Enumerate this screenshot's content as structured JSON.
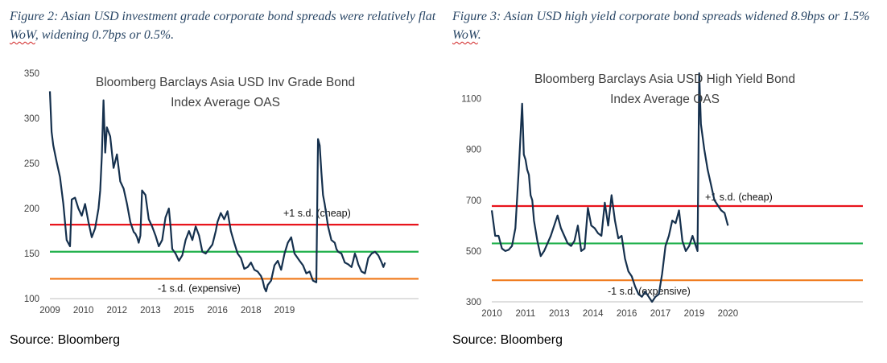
{
  "left": {
    "caption_pre": "Figure 2: Asian USD investment grade corporate bond spreads were relatively flat ",
    "caption_wavy": "WoW",
    "caption_post": ", widening 0.7bps or 0.5%.",
    "source": "Source: Bloomberg"
  },
  "right": {
    "caption_pre": "Figure 3: Asian USD high yield corporate bond spreads widened 8.9bps or 1.5% ",
    "caption_wavy": "WoW",
    "caption_post": ".",
    "source": "Source: Bloomberg"
  },
  "chart_data": [
    {
      "type": "line",
      "title_lines": [
        "Bloomberg Barclays Asia USD Inv Grade Bond",
        "Index Average OAS"
      ],
      "ylim": [
        100,
        350
      ],
      "yticks": [
        100,
        150,
        200,
        250,
        300,
        350
      ],
      "xlim": [
        2009.0,
        2020.0
      ],
      "x_tick_labels": [
        "2009",
        "2010",
        "2012",
        "2013",
        "2015",
        "2016",
        "2018",
        "2019"
      ],
      "x_tick_values": [
        2009.0,
        2010.0,
        2011.0,
        2012.0,
        2013.0,
        2014.0,
        2015.0,
        2016.0
      ],
      "line_color": "#15304d",
      "series": [
        {
          "x": [
            2009.0,
            2009.05,
            2009.1,
            2009.2,
            2009.3,
            2009.4,
            2009.5,
            2009.6,
            2009.65,
            2009.75,
            2009.85,
            2009.95,
            2010.05,
            2010.15,
            2010.25,
            2010.35,
            2010.45,
            2010.5,
            2010.55,
            2010.6,
            2010.65,
            2010.7,
            2010.8,
            2010.9,
            2011.0,
            2011.1,
            2011.2,
            2011.3,
            2011.4,
            2011.5,
            2011.55,
            2011.6,
            2011.65,
            2011.7,
            2011.75,
            2011.85,
            2011.95,
            2012.05,
            2012.15,
            2012.25,
            2012.35,
            2012.45,
            2012.55,
            2012.6,
            2012.65,
            2012.75,
            2012.85,
            2012.95,
            2013.05,
            2013.15,
            2013.25,
            2013.35,
            2013.45,
            2013.55,
            2013.65,
            2013.75,
            2013.85,
            2013.95,
            2014.0,
            2014.1,
            2014.2,
            2014.3,
            2014.4,
            2014.5,
            2014.6,
            2014.7,
            2014.8,
            2014.9,
            2015.0,
            2015.1,
            2015.2,
            2015.3,
            2015.35,
            2015.4,
            2015.45,
            2015.5,
            2015.6,
            2015.7,
            2015.8,
            2015.9,
            2016.0,
            2016.1,
            2016.2,
            2016.3,
            2016.45,
            2016.55,
            2016.65,
            2016.75,
            2016.85,
            2016.95,
            2017.0,
            2017.05,
            2017.1,
            2017.15,
            2017.2,
            2017.3,
            2017.4,
            2017.5,
            2017.55,
            2017.6,
            2017.7,
            2017.8,
            2017.9,
            2018.0,
            2018.05,
            2018.1,
            2018.15,
            2018.2,
            2018.3,
            2018.4,
            2018.5,
            2018.6,
            2018.7,
            2018.8,
            2018.9,
            2018.95,
            2019.0
          ],
          "y": [
            330,
            285,
            270,
            252,
            235,
            205,
            165,
            158,
            210,
            212,
            200,
            192,
            205,
            185,
            168,
            178,
            200,
            220,
            258,
            320,
            262,
            290,
            280,
            245,
            260,
            230,
            222,
            205,
            185,
            174,
            172,
            168,
            162,
            170,
            220,
            215,
            188,
            180,
            170,
            158,
            165,
            190,
            200,
            180,
            155,
            150,
            142,
            148,
            165,
            175,
            165,
            180,
            170,
            152,
            150,
            155,
            160,
            175,
            185,
            195,
            188,
            197,
            175,
            162,
            150,
            145,
            133,
            135,
            140,
            132,
            130,
            125,
            120,
            112,
            108,
            115,
            120,
            137,
            142,
            132,
            150,
            162,
            168,
            150,
            142,
            137,
            128,
            130,
            120,
            118,
            277,
            270,
            240,
            215,
            205,
            180,
            165,
            162,
            155,
            152,
            150,
            140,
            138,
            135,
            142,
            150,
            145,
            138,
            130,
            128,
            145,
            150,
            152,
            148,
            140,
            135,
            140
          ]
        }
      ],
      "reference_lines": [
        {
          "label": "+1 s.d. (cheap)",
          "value": 182,
          "color": "#e8141c"
        },
        {
          "label": "",
          "value": 152,
          "color": "#20b14c"
        },
        {
          "label": "-1 s.d. (expensive)",
          "value": 122,
          "color": "#f07d21"
        }
      ]
    },
    {
      "type": "line",
      "title_lines": [
        "Bloomberg Barclays Asia USD High Yield Bond",
        "Index Average OAS"
      ],
      "ylim": [
        300,
        1200
      ],
      "yticks": [
        300,
        500,
        700,
        900,
        1100
      ],
      "xlim": [
        2010.0,
        2021.0
      ],
      "x_tick_labels": [
        "2010",
        "2011",
        "2013",
        "2014",
        "2016",
        "2017",
        "2019",
        "2020"
      ],
      "x_tick_values": [
        2010.0,
        2011.0,
        2012.0,
        2013.0,
        2014.0,
        2015.0,
        2016.0,
        2017.0
      ],
      "line_color": "#15304d",
      "series": [
        {
          "x": [
            2010.0,
            2010.1,
            2010.2,
            2010.3,
            2010.4,
            2010.5,
            2010.6,
            2010.7,
            2010.8,
            2010.9,
            2010.95,
            2011.0,
            2011.05,
            2011.1,
            2011.15,
            2011.2,
            2011.25,
            2011.35,
            2011.45,
            2011.55,
            2011.65,
            2011.75,
            2011.85,
            2011.95,
            2012.05,
            2012.15,
            2012.25,
            2012.35,
            2012.45,
            2012.55,
            2012.65,
            2012.75,
            2012.85,
            2012.95,
            2013.05,
            2013.15,
            2013.25,
            2013.35,
            2013.45,
            2013.55,
            2013.65,
            2013.75,
            2013.85,
            2013.95,
            2014.05,
            2014.15,
            2014.25,
            2014.35,
            2014.45,
            2014.55,
            2014.65,
            2014.75,
            2014.85,
            2014.95,
            2015.05,
            2015.15,
            2015.25,
            2015.35,
            2015.45,
            2015.55,
            2015.65,
            2015.75,
            2015.85,
            2015.95,
            2016.05,
            2016.1,
            2016.15,
            2016.2,
            2016.3,
            2016.4,
            2016.5,
            2016.6,
            2016.7,
            2016.8,
            2016.9,
            2017.0
          ],
          "y": [
            660,
            560,
            560,
            510,
            500,
            505,
            520,
            590,
            820,
            1080,
            880,
            860,
            820,
            800,
            720,
            700,
            620,
            540,
            480,
            500,
            530,
            560,
            600,
            640,
            590,
            560,
            530,
            520,
            540,
            600,
            500,
            510,
            670,
            600,
            590,
            570,
            560,
            690,
            600,
            720,
            620,
            550,
            560,
            470,
            420,
            400,
            360,
            330,
            320,
            340,
            320,
            300,
            320,
            330,
            410,
            520,
            560,
            620,
            610,
            660,
            540,
            500,
            520,
            560,
            520,
            500,
            1200,
            1000,
            900,
            820,
            760,
            700,
            680,
            660,
            650,
            600
          ]
        }
      ],
      "reference_lines": [
        {
          "label": "+1 s.d. (cheap)",
          "value": 677,
          "color": "#e8141c"
        },
        {
          "label": "",
          "value": 530,
          "color": "#20b14c"
        },
        {
          "label": "-1 s.d. (expensive)",
          "value": 385,
          "color": "#f07d21"
        }
      ]
    }
  ]
}
